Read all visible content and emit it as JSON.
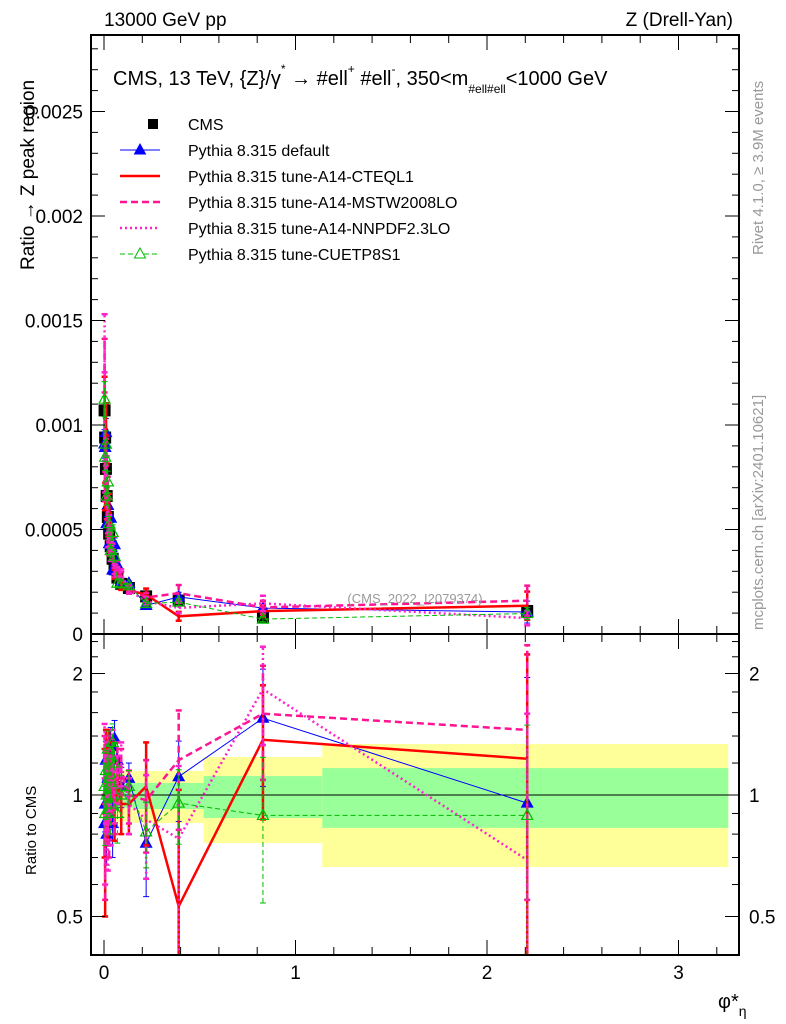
{
  "header": {
    "left": "13000 GeV pp",
    "right": "Z (Drell-Yan)"
  },
  "side_labels": {
    "rivet": "Rivet 4.1.0, ≥ 3.9M events",
    "mcplots": "mcplots.cern.ch [arXiv:2401.10621]"
  },
  "title_parts": [
    {
      "t": "CMS, 13 TeV, {Z}/γ",
      "s": ""
    },
    {
      "t": "*",
      "s": "sup"
    },
    {
      "t": "  →  #ell",
      "s": ""
    },
    {
      "t": "+",
      "s": "sup"
    },
    {
      "t": " #ell",
      "s": ""
    },
    {
      "t": "-",
      "s": "sup"
    },
    {
      "t": ", 350<m",
      "s": ""
    },
    {
      "t": "#ell#ell",
      "s": "sub"
    },
    {
      "t": "<1000 GeV",
      "s": ""
    }
  ],
  "annotation": "(CMS_2022_I2079374)",
  "chart_data": [
    {
      "type": "scatter",
      "panel": "main",
      "ylabel": "Ratio → Z peak region",
      "ylim": [
        0,
        0.002866
      ],
      "yticks": [
        {
          "v": 0,
          "l": "0"
        },
        {
          "v": 0.0005,
          "l": "0.0005"
        },
        {
          "v": 0.001,
          "l": "0.001"
        },
        {
          "v": 0.0015,
          "l": "0.0015"
        },
        {
          "v": 0.002,
          "l": "0.002"
        },
        {
          "v": 0.0025,
          "l": "0.0025"
        }
      ],
      "xlim": [
        -0.068,
        3.316
      ],
      "legend": [
        "CMS",
        "Pythia 8.315 default",
        "Pythia 8.315 tune-A14-CTEQL1",
        "Pythia 8.315 tune-A14-MSTW2008LO",
        "Pythia 8.315 tune-A14-NNPDF2.3LO",
        "Pythia 8.315 tune-CUETP8S1"
      ],
      "legend_placement": "top-left"
    },
    {
      "type": "line",
      "panel": "ratio",
      "ylabel": "Ratio to CMS",
      "xlabel": "φ*",
      "xlabel_sub": "η",
      "ylim": [
        0.4,
        2.5
      ],
      "yscale": "log",
      "yticks": [
        {
          "v": 0.5,
          "l": "0.5"
        },
        {
          "v": 1,
          "l": "1"
        },
        {
          "v": 2,
          "l": "2"
        }
      ],
      "xticks": [
        {
          "v": 0,
          "l": "0"
        },
        {
          "v": 1,
          "l": "1"
        },
        {
          "v": 2,
          "l": "2"
        },
        {
          "v": 3,
          "l": "3"
        }
      ],
      "xlim": [
        -0.068,
        3.316
      ]
    }
  ],
  "data": {
    "x": [
      0.003,
      0.006,
      0.01,
      0.014,
      0.02,
      0.027,
      0.035,
      0.045,
      0.055,
      0.07,
      0.09,
      0.13,
      0.22,
      0.39,
      0.83,
      2.21
    ],
    "cms": [
      0.00107,
      0.00094,
      0.00079,
      0.00066,
      0.00056,
      0.00048,
      0.00042,
      0.00036,
      0.00031,
      0.00027,
      0.00024,
      0.00022,
      0.00018,
      0.00016,
      8e-05,
      0.00011
    ],
    "cms_bands": [
      {
        "x0": -0.005,
        "x1": 0.03,
        "g": [
          0.93,
          1.07
        ],
        "y": [
          0.86,
          1.16
        ]
      },
      {
        "x0": 0.03,
        "x1": 0.08,
        "g": [
          0.92,
          1.08
        ],
        "y": [
          0.85,
          1.17
        ]
      },
      {
        "x0": 0.08,
        "x1": 0.15,
        "g": [
          0.93,
          1.07
        ],
        "y": [
          0.86,
          1.15
        ]
      },
      {
        "x0": 0.15,
        "x1": 0.52,
        "g": [
          0.923,
          1.071
        ],
        "y": [
          0.852,
          1.147
        ]
      },
      {
        "x0": 0.52,
        "x1": 1.14,
        "g": [
          0.877,
          1.114
        ],
        "y": [
          0.76,
          1.242
        ]
      },
      {
        "x0": 1.14,
        "x1": 3.26,
        "g": [
          0.829,
          1.166
        ],
        "y": [
          0.663,
          1.338
        ]
      }
    ],
    "series": [
      {
        "name": "Pythia 8.315 default",
        "color": "#0000ff",
        "ratio": [
          0.85,
          0.95,
          1.22,
          0.8,
          1.1,
          0.9,
          1.32,
          0.85,
          1.38,
          1.22,
          1.05,
          1.1,
          0.76,
          1.11,
          1.55,
          0.955
        ],
        "err": [
          0.15,
          0.14,
          0.14,
          0.13,
          0.14,
          0.13,
          0.15,
          0.15,
          0.15,
          0.14,
          0.12,
          0.1,
          0.2,
          0.25,
          0.5,
          1.0
        ]
      },
      {
        "name": "Pythia 8.315 tune-A14-CTEQL1",
        "color": "#ff0000",
        "ratio": [
          1.0,
          0.7,
          1.3,
          1.15,
          0.9,
          1.3,
          1.0,
          1.2,
          0.92,
          1.1,
          0.95,
          0.95,
          1.05,
          0.53,
          1.37,
          1.23
        ],
        "err": [
          0.3,
          0.2,
          0.15,
          0.15,
          0.15,
          0.15,
          0.15,
          0.15,
          0.15,
          0.15,
          0.15,
          0.15,
          0.3,
          0.5,
          0.5,
          1.0
        ]
      },
      {
        "name": "Pythia 8.315 tune-A14-MSTW2008LO",
        "color": "#ff1493",
        "ratio": [
          1.2,
          0.75,
          1.1,
          0.9,
          1.25,
          0.85,
          1.15,
          1.05,
          0.95,
          1.2,
          1.15,
          1.0,
          0.97,
          1.22,
          1.59,
          1.45
        ],
        "err": [
          0.2,
          0.2,
          0.15,
          0.15,
          0.15,
          0.15,
          0.15,
          0.15,
          0.15,
          0.15,
          0.15,
          0.15,
          0.25,
          0.4,
          0.5,
          0.9
        ]
      },
      {
        "name": "Pythia 8.315 tune-A14-NNPDF2.3LO",
        "color": "#ff22cc",
        "ratio": [
          1.3,
          0.8,
          1.0,
          1.2,
          0.8,
          1.1,
          0.9,
          1.3,
          1.0,
          1.1,
          1.2,
          0.95,
          0.87,
          0.78,
          1.83,
          0.69
        ],
        "err": [
          0.2,
          0.2,
          0.15,
          0.15,
          0.15,
          0.15,
          0.15,
          0.15,
          0.15,
          0.15,
          0.15,
          0.15,
          0.25,
          0.4,
          0.5,
          0.9
        ]
      },
      {
        "name": "Pythia 8.315 tune-CUETP8S1",
        "color": "#00bb00",
        "ratio": [
          1.05,
          0.9,
          1.15,
          1.0,
          1.3,
          1.1,
          0.95,
          1.35,
          1.2,
          0.9,
          1.0,
          1.05,
          0.81,
          0.955,
          0.89,
          0.89
        ],
        "err": [
          0.15,
          0.15,
          0.14,
          0.13,
          0.14,
          0.13,
          0.15,
          0.15,
          0.15,
          0.14,
          0.12,
          0.1,
          0.15,
          0.2,
          0.35,
          0.6
        ]
      }
    ]
  }
}
